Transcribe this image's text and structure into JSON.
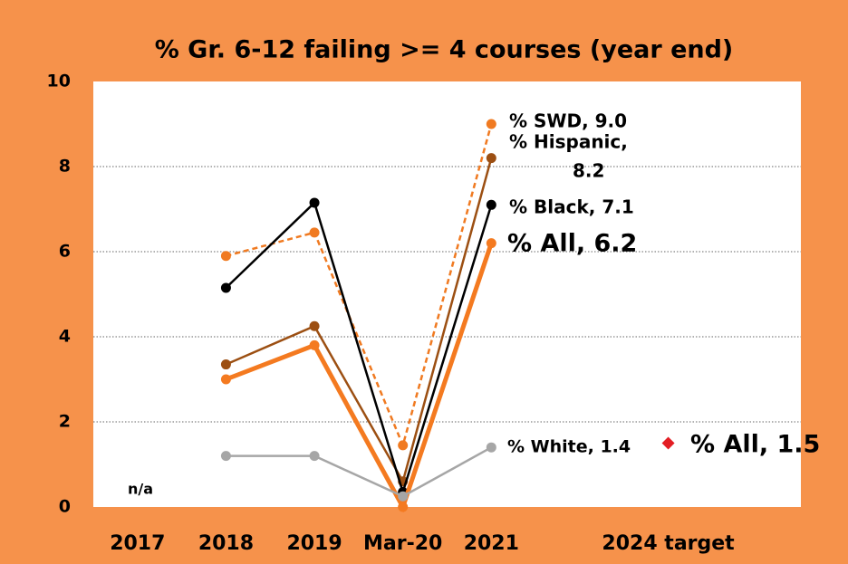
{
  "chart_data": {
    "type": "line",
    "title": "% Gr. 6-12 failing >= 4 courses (year end)",
    "categories": [
      "2017",
      "2018",
      "2019",
      "Mar-20",
      "2021",
      null,
      "2024 target",
      null
    ],
    "series": [
      {
        "label": "% SWD, 9.0",
        "color": "#f07a21",
        "dash": true,
        "width": 2.5,
        "values": [
          null,
          5.9,
          6.45,
          1.45,
          9.0,
          null,
          null,
          null
        ]
      },
      {
        "label": [
          "% Hispanic,",
          "8.2"
        ],
        "color": "#9c4f12",
        "dash": false,
        "width": 2.5,
        "values": [
          null,
          3.35,
          4.25,
          0.6,
          8.2,
          null,
          null,
          null
        ]
      },
      {
        "label": "% Black, 7.1",
        "color": "#000000",
        "dash": false,
        "width": 2.5,
        "values": [
          null,
          5.15,
          7.15,
          0.35,
          7.1,
          null,
          null,
          null
        ]
      },
      {
        "label": "% All, 6.2",
        "color": "#f47a20",
        "dash": false,
        "width": 5,
        "values": [
          null,
          3.0,
          3.8,
          0.0,
          6.2,
          null,
          null,
          null
        ]
      },
      {
        "label": "% White, 1.4",
        "color": "#a6a6a6",
        "dash": false,
        "width": 2.5,
        "values": [
          null,
          1.2,
          1.2,
          0.25,
          1.4,
          null,
          null,
          null
        ]
      },
      {
        "label": "% All, 1.5",
        "color": "#e31e24",
        "marker": "diamond",
        "values": [
          null,
          null,
          null,
          null,
          null,
          null,
          1.5,
          null
        ]
      }
    ],
    "annotations": [
      "n/a"
    ],
    "ylim": [
      0,
      10
    ],
    "yticks": [
      0,
      2,
      4,
      6,
      8,
      10
    ],
    "grid": true
  }
}
